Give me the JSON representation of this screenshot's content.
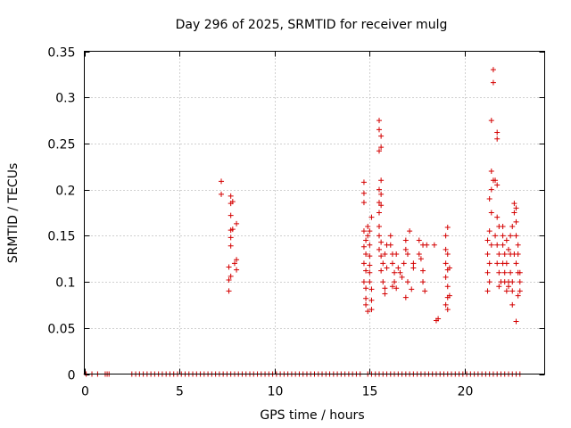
{
  "chart_data": {
    "type": "scatter",
    "title": "Day 296 of 2025, SRMTID for receiver mulg",
    "xlabel": "GPS time / hours",
    "ylabel": "SRMTID / TECUs",
    "xlim": [
      0,
      24.2
    ],
    "ylim": [
      0,
      0.35
    ],
    "xticks": [
      0,
      5,
      10,
      15,
      20
    ],
    "xtick_labels": [
      "0",
      "5",
      "10",
      "15",
      "20"
    ],
    "yticks": [
      0,
      0.05,
      0.1,
      0.15,
      0.2,
      0.25,
      0.3,
      0.35
    ],
    "ytick_labels": [
      "0",
      "0.05",
      "0.1",
      "0.15",
      "0.2",
      "0.25",
      "0.3",
      "0.35"
    ],
    "grid": true,
    "marker": "+",
    "series": [
      {
        "name": "SRMTID",
        "color": "#d40000",
        "points": [
          [
            0.1,
            0
          ],
          [
            0.4,
            0
          ],
          [
            0.7,
            0
          ],
          [
            1.1,
            0
          ],
          [
            1.2,
            0
          ],
          [
            1.3,
            0
          ],
          [
            2.5,
            0
          ],
          [
            2.7,
            0
          ],
          [
            2.9,
            0
          ],
          [
            3.1,
            0
          ],
          [
            3.3,
            0
          ],
          [
            3.5,
            0
          ],
          [
            3.7,
            0
          ],
          [
            3.9,
            0
          ],
          [
            4.1,
            0
          ],
          [
            4.3,
            0
          ],
          [
            4.5,
            0
          ],
          [
            4.7,
            0
          ],
          [
            4.9,
            0
          ],
          [
            5.1,
            0
          ],
          [
            5.3,
            0
          ],
          [
            5.5,
            0
          ],
          [
            5.7,
            0
          ],
          [
            5.9,
            0
          ],
          [
            6.1,
            0
          ],
          [
            6.3,
            0
          ],
          [
            6.5,
            0
          ],
          [
            6.7,
            0
          ],
          [
            6.9,
            0
          ],
          [
            7.1,
            0
          ],
          [
            7.3,
            0
          ],
          [
            7.5,
            0
          ],
          [
            7.7,
            0
          ],
          [
            7.9,
            0
          ],
          [
            8.1,
            0
          ],
          [
            8.3,
            0
          ],
          [
            8.5,
            0
          ],
          [
            8.7,
            0
          ],
          [
            8.9,
            0
          ],
          [
            9.1,
            0
          ],
          [
            9.3,
            0
          ],
          [
            9.5,
            0
          ],
          [
            9.7,
            0
          ],
          [
            9.9,
            0
          ],
          [
            10.1,
            0
          ],
          [
            10.3,
            0
          ],
          [
            10.5,
            0
          ],
          [
            10.7,
            0
          ],
          [
            10.9,
            0
          ],
          [
            11.1,
            0
          ],
          [
            11.3,
            0
          ],
          [
            11.5,
            0
          ],
          [
            11.7,
            0
          ],
          [
            11.9,
            0
          ],
          [
            12.1,
            0
          ],
          [
            12.3,
            0
          ],
          [
            12.5,
            0
          ],
          [
            12.7,
            0
          ],
          [
            12.9,
            0
          ],
          [
            13.1,
            0
          ],
          [
            13.3,
            0
          ],
          [
            13.5,
            0
          ],
          [
            13.7,
            0
          ],
          [
            13.9,
            0
          ],
          [
            14.1,
            0
          ],
          [
            14.3,
            0
          ],
          [
            14.5,
            0
          ],
          [
            14.9,
            0
          ],
          [
            15.1,
            0
          ],
          [
            15.3,
            0
          ],
          [
            15.5,
            0
          ],
          [
            15.7,
            0
          ],
          [
            15.9,
            0
          ],
          [
            16.1,
            0
          ],
          [
            16.3,
            0
          ],
          [
            16.5,
            0
          ],
          [
            16.7,
            0
          ],
          [
            16.9,
            0
          ],
          [
            17.1,
            0
          ],
          [
            17.3,
            0
          ],
          [
            17.5,
            0
          ],
          [
            17.7,
            0
          ],
          [
            17.9,
            0
          ],
          [
            18.1,
            0
          ],
          [
            18.3,
            0
          ],
          [
            18.5,
            0
          ],
          [
            18.7,
            0
          ],
          [
            18.9,
            0
          ],
          [
            19.1,
            0
          ],
          [
            19.3,
            0
          ],
          [
            19.5,
            0
          ],
          [
            19.7,
            0
          ],
          [
            19.9,
            0
          ],
          [
            20.1,
            0
          ],
          [
            20.3,
            0
          ],
          [
            20.5,
            0
          ],
          [
            20.7,
            0
          ],
          [
            20.9,
            0
          ],
          [
            21.1,
            0
          ],
          [
            21.3,
            0
          ],
          [
            21.5,
            0
          ],
          [
            21.7,
            0
          ],
          [
            21.9,
            0
          ],
          [
            22.1,
            0
          ],
          [
            22.3,
            0
          ],
          [
            22.5,
            0
          ],
          [
            22.7,
            0
          ],
          [
            22.9,
            0
          ],
          [
            7.2,
            0.209
          ],
          [
            7.2,
            0.195
          ],
          [
            7.7,
            0.193
          ],
          [
            7.7,
            0.185
          ],
          [
            7.8,
            0.187
          ],
          [
            7.7,
            0.172
          ],
          [
            7.7,
            0.156
          ],
          [
            7.8,
            0.157
          ],
          [
            7.7,
            0.148
          ],
          [
            7.7,
            0.139
          ],
          [
            8.0,
            0.163
          ],
          [
            8.0,
            0.124
          ],
          [
            7.9,
            0.12
          ],
          [
            8.0,
            0.113
          ],
          [
            7.6,
            0.116
          ],
          [
            7.7,
            0.106
          ],
          [
            7.6,
            0.102
          ],
          [
            7.6,
            0.09
          ],
          [
            14.7,
            0.208
          ],
          [
            14.7,
            0.196
          ],
          [
            14.7,
            0.186
          ],
          [
            14.7,
            0.155
          ],
          [
            14.8,
            0.145
          ],
          [
            14.7,
            0.138
          ],
          [
            14.8,
            0.13
          ],
          [
            14.7,
            0.12
          ],
          [
            14.8,
            0.112
          ],
          [
            14.7,
            0.1
          ],
          [
            14.8,
            0.093
          ],
          [
            14.8,
            0.082
          ],
          [
            14.8,
            0.075
          ],
          [
            14.9,
            0.068
          ],
          [
            14.9,
            0.16
          ],
          [
            14.9,
            0.15
          ],
          [
            15.0,
            0.14
          ],
          [
            15.0,
            0.128
          ],
          [
            15.0,
            0.118
          ],
          [
            15.0,
            0.11
          ],
          [
            15.0,
            0.1
          ],
          [
            15.1,
            0.092
          ],
          [
            15.1,
            0.08
          ],
          [
            15.1,
            0.07
          ],
          [
            15.1,
            0.17
          ],
          [
            15.0,
            0.155
          ],
          [
            15.5,
            0.275
          ],
          [
            15.5,
            0.265
          ],
          [
            15.6,
            0.258
          ],
          [
            15.6,
            0.246
          ],
          [
            15.5,
            0.242
          ],
          [
            15.5,
            0.2
          ],
          [
            15.6,
            0.195
          ],
          [
            15.5,
            0.186
          ],
          [
            15.6,
            0.183
          ],
          [
            15.5,
            0.175
          ],
          [
            15.6,
            0.21
          ],
          [
            15.5,
            0.16
          ],
          [
            15.5,
            0.15
          ],
          [
            15.6,
            0.143
          ],
          [
            15.5,
            0.135
          ],
          [
            15.6,
            0.128
          ],
          [
            15.7,
            0.12
          ],
          [
            15.6,
            0.112
          ],
          [
            15.7,
            0.1
          ],
          [
            15.8,
            0.093
          ],
          [
            15.8,
            0.13
          ],
          [
            15.9,
            0.14
          ],
          [
            15.9,
            0.115
          ],
          [
            15.8,
            0.087
          ],
          [
            16.1,
            0.15
          ],
          [
            16.1,
            0.14
          ],
          [
            16.2,
            0.13
          ],
          [
            16.2,
            0.12
          ],
          [
            16.3,
            0.11
          ],
          [
            16.3,
            0.1
          ],
          [
            16.2,
            0.095
          ],
          [
            16.4,
            0.093
          ],
          [
            16.4,
            0.13
          ],
          [
            16.5,
            0.115
          ],
          [
            16.6,
            0.11
          ],
          [
            16.7,
            0.105
          ],
          [
            16.8,
            0.12
          ],
          [
            16.9,
            0.145
          ],
          [
            16.9,
            0.135
          ],
          [
            17.0,
            0.13
          ],
          [
            17.0,
            0.1
          ],
          [
            16.9,
            0.083
          ],
          [
            17.1,
            0.155
          ],
          [
            17.2,
            0.092
          ],
          [
            17.3,
            0.115
          ],
          [
            17.3,
            0.12
          ],
          [
            17.6,
            0.145
          ],
          [
            17.6,
            0.13
          ],
          [
            17.7,
            0.125
          ],
          [
            17.8,
            0.14
          ],
          [
            17.8,
            0.112
          ],
          [
            17.8,
            0.1
          ],
          [
            17.9,
            0.09
          ],
          [
            18.0,
            0.14
          ],
          [
            18.4,
            0.14
          ],
          [
            18.5,
            0.058
          ],
          [
            18.6,
            0.06
          ],
          [
            19.0,
            0.15
          ],
          [
            19.0,
            0.12
          ],
          [
            19.1,
            0.113
          ],
          [
            19.0,
            0.105
          ],
          [
            19.1,
            0.095
          ],
          [
            19.0,
            0.075
          ],
          [
            19.1,
            0.07
          ],
          [
            19.1,
            0.083
          ],
          [
            19.2,
            0.085
          ],
          [
            19.1,
            0.13
          ],
          [
            19.0,
            0.135
          ],
          [
            19.2,
            0.115
          ],
          [
            19.1,
            0.159
          ],
          [
            21.2,
            0.145
          ],
          [
            21.2,
            0.13
          ],
          [
            21.3,
            0.12
          ],
          [
            21.2,
            0.11
          ],
          [
            21.2,
            0.09
          ],
          [
            21.3,
            0.1
          ],
          [
            21.3,
            0.155
          ],
          [
            21.4,
            0.14
          ],
          [
            21.4,
            0.175
          ],
          [
            21.3,
            0.19
          ],
          [
            21.4,
            0.2
          ],
          [
            21.5,
            0.21
          ],
          [
            21.4,
            0.22
          ],
          [
            21.5,
            0.33
          ],
          [
            21.5,
            0.316
          ],
          [
            21.4,
            0.275
          ],
          [
            21.7,
            0.262
          ],
          [
            21.7,
            0.255
          ],
          [
            21.6,
            0.21
          ],
          [
            21.7,
            0.205
          ],
          [
            21.7,
            0.17
          ],
          [
            21.8,
            0.16
          ],
          [
            21.6,
            0.15
          ],
          [
            21.7,
            0.14
          ],
          [
            21.8,
            0.13
          ],
          [
            21.7,
            0.12
          ],
          [
            21.8,
            0.11
          ],
          [
            21.9,
            0.1
          ],
          [
            21.8,
            0.095
          ],
          [
            22.0,
            0.15
          ],
          [
            22.0,
            0.14
          ],
          [
            22.1,
            0.13
          ],
          [
            22.0,
            0.12
          ],
          [
            22.1,
            0.11
          ],
          [
            22.1,
            0.1
          ],
          [
            22.2,
            0.09
          ],
          [
            22.0,
            0.16
          ],
          [
            22.2,
            0.145
          ],
          [
            22.3,
            0.135
          ],
          [
            22.2,
            0.12
          ],
          [
            22.3,
            0.1
          ],
          [
            22.3,
            0.095
          ],
          [
            22.4,
            0.15
          ],
          [
            22.4,
            0.13
          ],
          [
            22.4,
            0.11
          ],
          [
            22.5,
            0.1
          ],
          [
            22.5,
            0.09
          ],
          [
            22.6,
            0.13
          ],
          [
            22.5,
            0.16
          ],
          [
            22.6,
            0.175
          ],
          [
            22.6,
            0.185
          ],
          [
            22.7,
            0.18
          ],
          [
            22.7,
            0.165
          ],
          [
            22.7,
            0.15
          ],
          [
            22.8,
            0.14
          ],
          [
            22.8,
            0.13
          ],
          [
            22.7,
            0.12
          ],
          [
            22.8,
            0.11
          ],
          [
            22.9,
            0.1
          ],
          [
            22.9,
            0.09
          ],
          [
            22.7,
            0.057
          ],
          [
            22.5,
            0.075
          ],
          [
            22.8,
            0.085
          ],
          [
            22.9,
            0.11
          ]
        ]
      }
    ]
  }
}
